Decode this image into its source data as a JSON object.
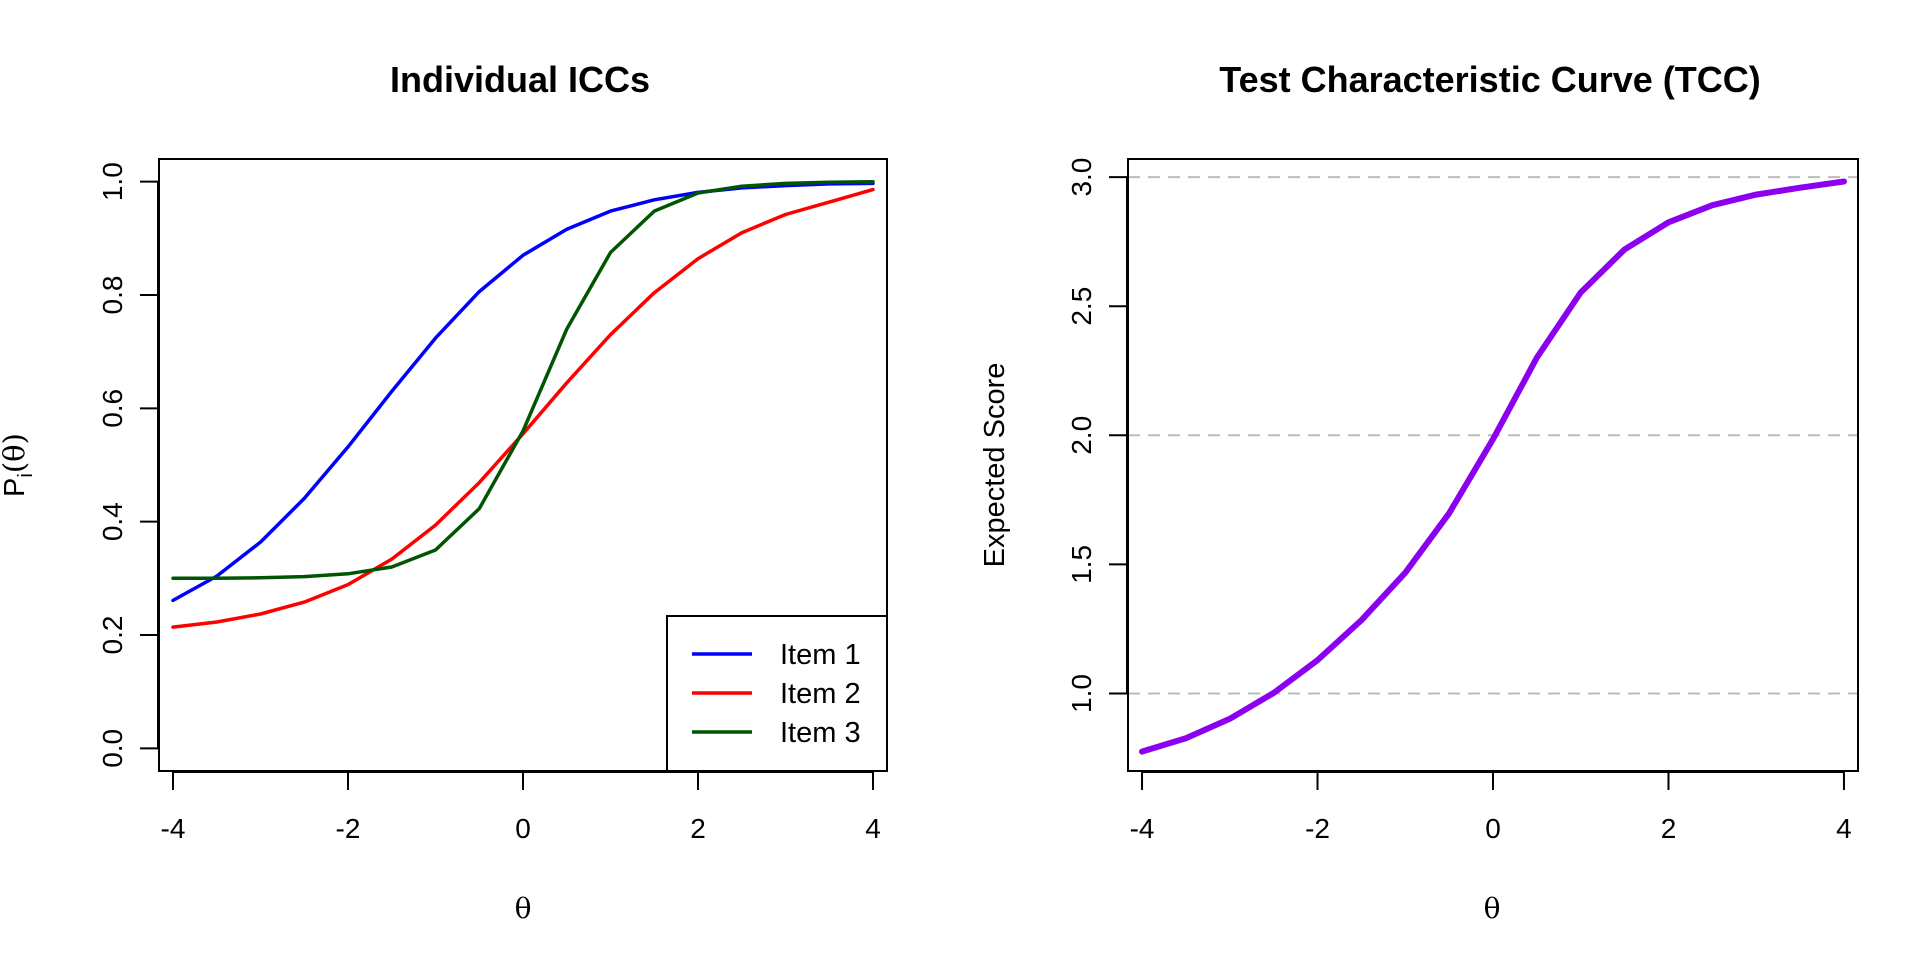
{
  "chart_data": [
    {
      "type": "line",
      "title": "Individual ICCs",
      "xlabel": "θ",
      "ylabel_main": "P",
      "ylabel_sub": "i",
      "ylabel_tail": "(θ)",
      "xlim": [
        -4.16,
        4.16
      ],
      "ylim": [
        -0.04,
        1.04
      ],
      "x_ticks": [
        -4,
        -2,
        0,
        2,
        4
      ],
      "x_tick_labels": [
        "-4",
        "-2",
        "0",
        "2",
        "4"
      ],
      "y_ticks": [
        0.0,
        0.2,
        0.4,
        0.6,
        0.8,
        1.0
      ],
      "y_tick_labels": [
        "0.0",
        "0.2",
        "0.4",
        "0.6",
        "0.8",
        "1.0"
      ],
      "legend_position": "bottom-right",
      "series": [
        {
          "name": "Item 1",
          "color": "#0000ff",
          "x": [
            -4,
            -3.5,
            -3,
            -2.5,
            -2,
            -1.5,
            -1,
            -0.5,
            0,
            0.5,
            1,
            1.5,
            2,
            2.5,
            3,
            3.5,
            4
          ],
          "values": [
            0.261,
            0.304,
            0.364,
            0.441,
            0.532,
            0.63,
            0.724,
            0.806,
            0.87,
            0.916,
            0.948,
            0.968,
            0.981,
            0.989,
            0.993,
            0.996,
            0.997
          ]
        },
        {
          "name": "Item 2",
          "color": "#ff0000",
          "x": [
            -4,
            -3.5,
            -3,
            -2.5,
            -2,
            -1.5,
            -1,
            -0.5,
            0,
            0.5,
            1,
            1.5,
            2,
            2.5,
            3,
            3.5,
            4
          ],
          "values": [
            0.214,
            0.223,
            0.237,
            0.258,
            0.289,
            0.334,
            0.394,
            0.469,
            0.555,
            0.645,
            0.73,
            0.804,
            0.864,
            0.91,
            0.942,
            0.964,
            0.986
          ]
        },
        {
          "name": "Item 3",
          "color": "#005500",
          "x": [
            -4,
            -3.5,
            -3,
            -2.5,
            -2,
            -1.5,
            -1,
            -0.5,
            0,
            0.5,
            1,
            1.5,
            2,
            2.5,
            3,
            3.5,
            4
          ],
          "values": [
            0.3,
            0.3,
            0.301,
            0.303,
            0.308,
            0.32,
            0.35,
            0.423,
            0.56,
            0.74,
            0.875,
            0.948,
            0.98,
            0.992,
            0.997,
            0.999,
            1.0
          ]
        }
      ]
    },
    {
      "type": "line",
      "title": "Test Characteristic Curve (TCC)",
      "xlabel": "θ",
      "ylabel": "Expected Score",
      "xlim": [
        -4.16,
        4.16
      ],
      "ylim": [
        0.7,
        3.07
      ],
      "x_ticks": [
        -4,
        -2,
        0,
        2,
        4
      ],
      "x_tick_labels": [
        "-4",
        "-2",
        "0",
        "2",
        "4"
      ],
      "y_ticks": [
        1.0,
        1.5,
        2.0,
        2.5,
        3.0
      ],
      "y_tick_labels": [
        "1.0",
        "1.5",
        "2.0",
        "2.5",
        "3.0"
      ],
      "reference_lines": [
        1,
        2,
        3
      ],
      "reference_color": "#bbbbbb",
      "series": [
        {
          "name": "TCC",
          "color": "#8b00ee",
          "x": [
            -4,
            -3.5,
            -3,
            -2.5,
            -2,
            -1.5,
            -1,
            -0.5,
            0,
            0.5,
            1,
            1.5,
            2,
            2.5,
            3,
            3.5,
            4
          ],
          "values": [
            0.775,
            0.827,
            0.902,
            1.002,
            1.129,
            1.284,
            1.468,
            1.698,
            1.985,
            2.301,
            2.553,
            2.72,
            2.825,
            2.891,
            2.932,
            2.959,
            2.983
          ]
        }
      ]
    }
  ]
}
